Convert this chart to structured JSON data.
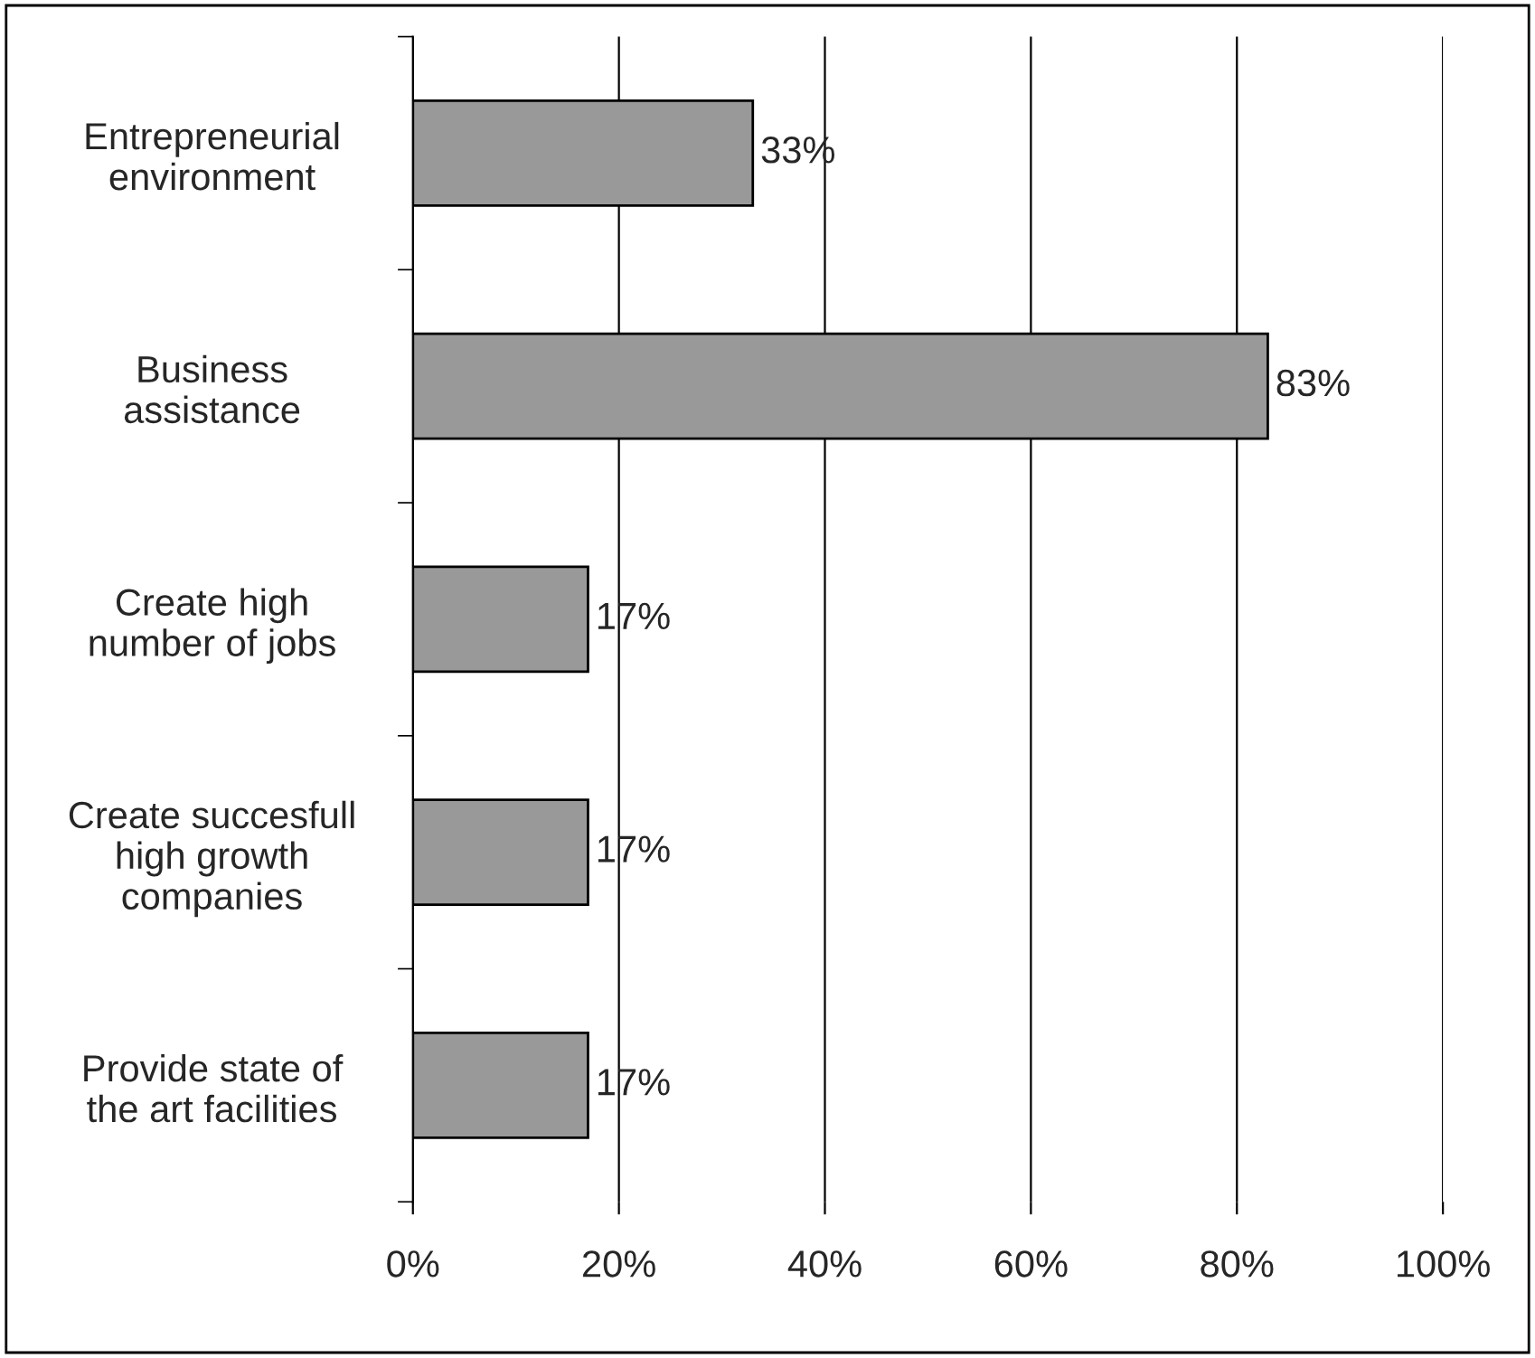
{
  "chart_data": {
    "type": "bar",
    "orientation": "horizontal",
    "categories": [
      "Entrepreneurial\nenvironment",
      "Business\nassistance",
      "Create high\nnumber of jobs",
      "Create succesfull\nhigh growth\ncompanies",
      "Provide state of\nthe art facilities"
    ],
    "values": [
      33,
      83,
      17,
      17,
      17
    ],
    "value_labels": [
      "33%",
      "83%",
      "17%",
      "17%",
      "17%"
    ],
    "color": "#999999",
    "xlim": [
      0,
      100
    ],
    "xticks": [
      {
        "value": 0,
        "label": "0%"
      },
      {
        "value": 20,
        "label": "20%"
      },
      {
        "value": 40,
        "label": "40%"
      },
      {
        "value": 60,
        "label": "60%"
      },
      {
        "value": 80,
        "label": "80%"
      },
      {
        "value": 100,
        "label": "100%"
      }
    ],
    "grid": "x",
    "legend": false
  }
}
